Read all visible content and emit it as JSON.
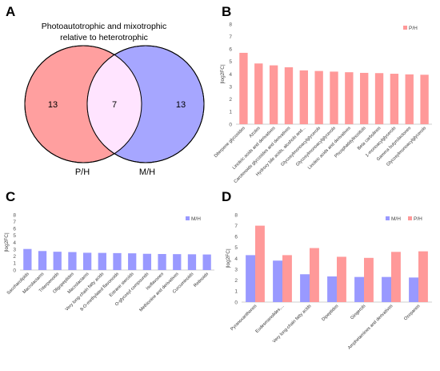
{
  "panels": {
    "A": "A",
    "B": "B",
    "C": "C",
    "D": "D"
  },
  "venn": {
    "title_line1": "Photoautotrophic and mixotrophic",
    "title_line2": "relative to heterotrophic",
    "left_label": "P/H",
    "right_label": "M/H",
    "left_only": "13",
    "overlap": "7",
    "right_only": "13",
    "left_color": "#ff9f9f",
    "right_color": "#a6a6ff",
    "overlap_color": "#ffe4ff"
  },
  "chart_data": [
    {
      "id": "B",
      "type": "bar",
      "ylabel": "|log2FC|",
      "ylim": [
        0,
        8
      ],
      "yticks": [
        0,
        1,
        2,
        3,
        4,
        5,
        6,
        7,
        8
      ],
      "legend_placement": "top-right",
      "categories": [
        "Diterpene glycosides",
        "Azoles",
        "Linoleic acids and derivatives",
        "Carotenoids glycosides and derivatives",
        "Hydroxy bile acids, alcohols and...",
        "Glycosylmonoacylglycerols",
        "Glycosylmonoacylglycerols",
        "Linoleic acids and derivatives",
        "Phosphatidylinositols",
        "Beta carbolines",
        "1-monoacylglycerols",
        "Gamma butyrolactones",
        "Glycosylmonoacylglycerols"
      ],
      "series": [
        {
          "name": "P/H",
          "color": "#ff9999",
          "values": [
            5.7,
            4.85,
            4.7,
            4.55,
            4.3,
            4.25,
            4.2,
            4.15,
            4.1,
            4.08,
            4.03,
            3.98,
            3.95
          ]
        }
      ]
    },
    {
      "id": "C",
      "type": "bar",
      "ylabel": "|log2FC|",
      "ylim": [
        0,
        8
      ],
      "yticks": [
        0,
        1,
        2,
        3,
        4,
        5,
        6,
        7,
        8
      ],
      "legend_placement": "top-right",
      "categories": [
        "Saccharolipids",
        "Macrolactams",
        "Triterpenoids",
        "Oligopeptides",
        "Macrolactams",
        "Very long-chain fatty acids",
        "8-O-methylated flavonoids",
        "Estrane steroids",
        "O-glycosyl compounds",
        "Isoflavones",
        "Methionine and derivatives",
        "Curcuminoids",
        "Retinoids"
      ],
      "series": [
        {
          "name": "M/H",
          "color": "#9999ff",
          "values": [
            3.05,
            2.75,
            2.65,
            2.6,
            2.5,
            2.48,
            2.45,
            2.42,
            2.35,
            2.32,
            2.3,
            2.28,
            2.25
          ]
        }
      ]
    },
    {
      "id": "D",
      "type": "bar",
      "ylabel": "|log2FC|",
      "ylim": [
        0,
        8
      ],
      "yticks": [
        0,
        1,
        2,
        3,
        4,
        5,
        6,
        7,
        8
      ],
      "legend_placement": "top-right",
      "categories": [
        "Pyranoxanthones",
        "Eudesmanolides,...",
        "Very long-chain fatty acids",
        "Dipeptides",
        "Gingerols",
        "Amphetamines and derivatives",
        "Oxepanes"
      ],
      "series": [
        {
          "name": "M/H",
          "color": "#9999ff",
          "values": [
            4.3,
            3.8,
            2.55,
            2.35,
            2.3,
            2.3,
            2.25
          ]
        },
        {
          "name": "P/H",
          "color": "#ff9999",
          "values": [
            7.0,
            4.3,
            4.95,
            4.15,
            4.05,
            4.6,
            4.65
          ]
        }
      ]
    }
  ]
}
